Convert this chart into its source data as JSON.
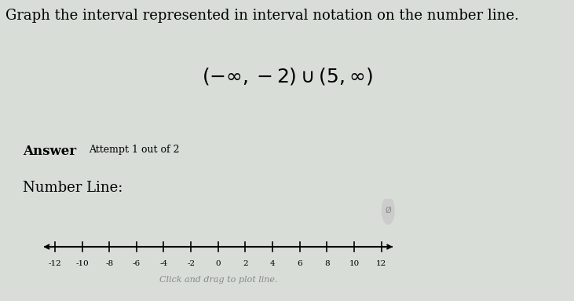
{
  "title_text": "Graph the interval represented in interval notation on the number line.",
  "interval_latex": "$(-\\infty, -2) \\cup (5, \\infty)$",
  "answer_label": "Answer",
  "attempt_label": "Attempt 1 out of 2",
  "numberline_label": "Number Line:",
  "click_text": "Click and drag to plot line.",
  "tick_labels": [
    -12,
    -10,
    -8,
    -6,
    -4,
    -2,
    0,
    2,
    4,
    6,
    8,
    10,
    12
  ],
  "bg_color": "#d8ddd8",
  "box_bg": "#ffffff",
  "box_edge": "#888888",
  "line_color": "#000000",
  "title_fontsize": 13,
  "interval_fontsize": 18,
  "label_fontsize": 12
}
